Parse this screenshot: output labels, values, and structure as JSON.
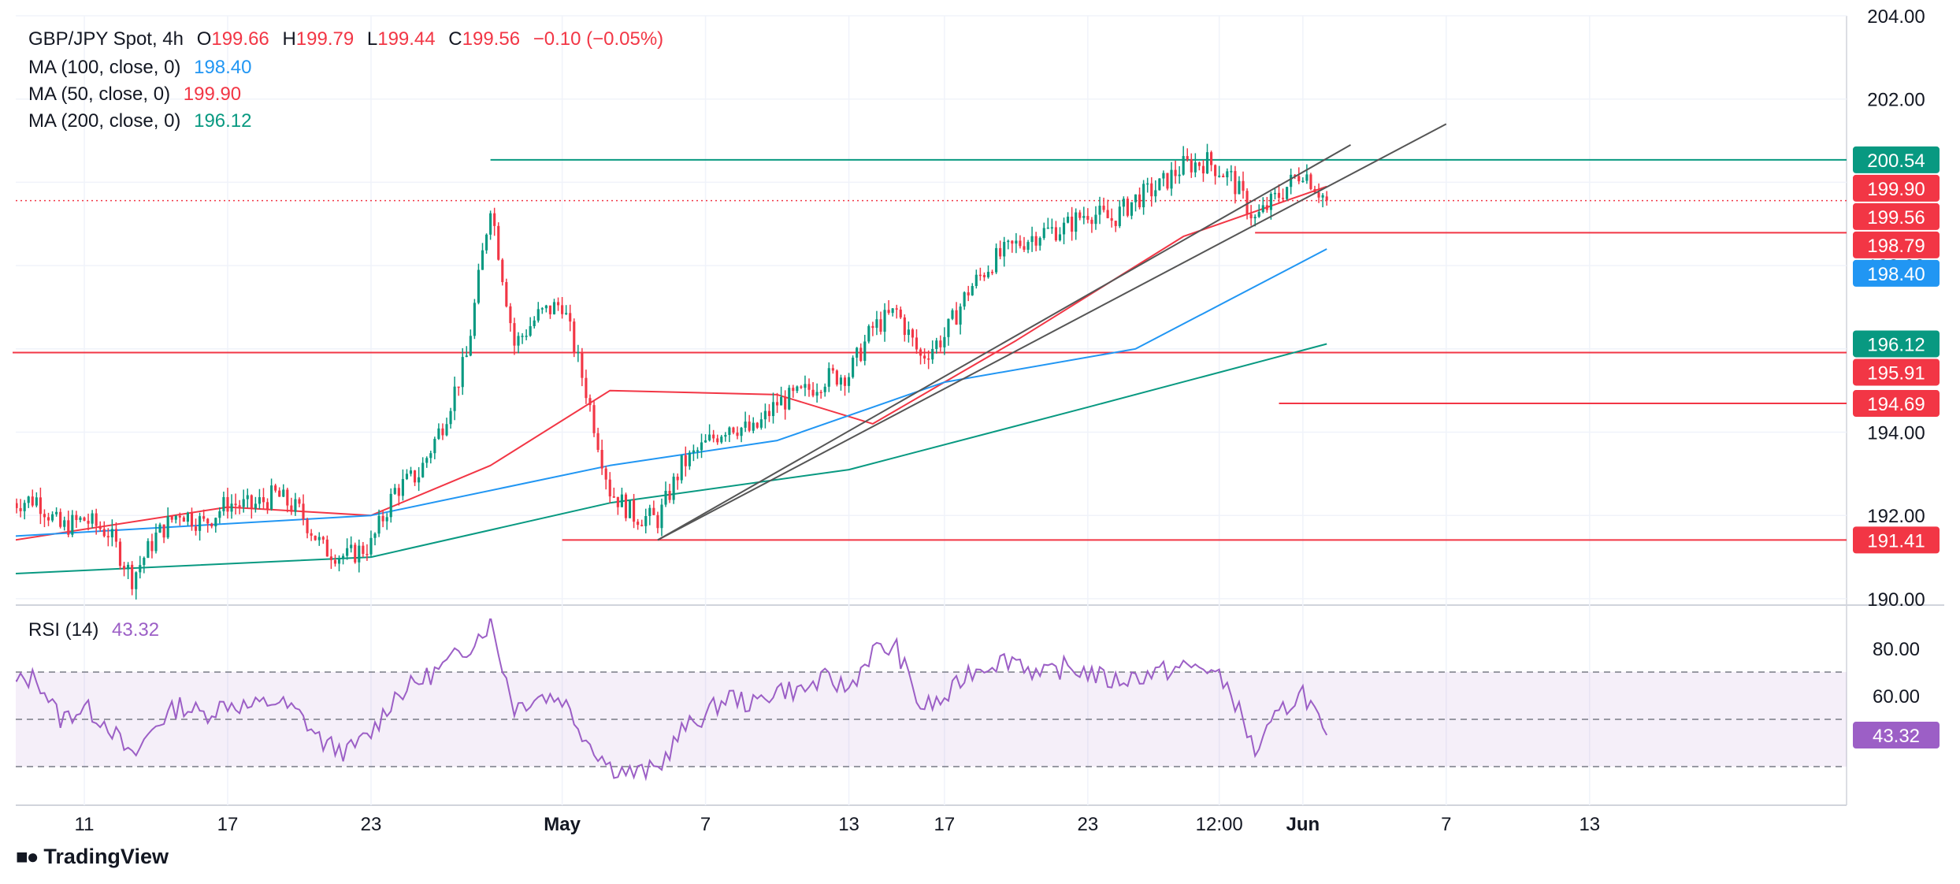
{
  "header": {
    "symbol": "GBP/JPY Spot, 4h",
    "open_label": "O",
    "open": "199.66",
    "high_label": "H",
    "high": "199.79",
    "low_label": "L",
    "low": "199.44",
    "close_label": "C",
    "close": "199.56",
    "change": "−0.10 (−0.05%)"
  },
  "indicators": {
    "ma100": {
      "label": "MA (100, close, 0)",
      "value": "198.40",
      "color": "#2196f3"
    },
    "ma50": {
      "label": "MA (50, close, 0)",
      "value": "199.90",
      "color": "#f23645"
    },
    "ma200": {
      "label": "MA (200, close, 0)",
      "value": "196.12",
      "color": "#089981"
    },
    "rsi": {
      "label": "RSI (14)",
      "value": "43.32",
      "color": "#9c5fc6"
    }
  },
  "branding": {
    "logo_text": "TradingView"
  },
  "chart_data": {
    "type": "candlestick",
    "title": "GBP/JPY Spot, 4h",
    "price_axis": {
      "ticks": [
        "204.00",
        "202.00",
        "200.00",
        "198.00",
        "196.00",
        "194.00",
        "192.00",
        "190.00"
      ],
      "ylim": [
        190.0,
        204.0
      ]
    },
    "time_axis": {
      "labels": [
        "11",
        "17",
        "23",
        "May",
        "7",
        "13",
        "17",
        "23",
        "12:00",
        "Jun",
        "7",
        "13"
      ],
      "label_dates": [
        "Apr 11",
        "Apr 17",
        "Apr 23",
        "May 1",
        "May 7",
        "May 13",
        "May 17",
        "May 23",
        "May 28 12:00",
        "Jun 1",
        "Jun 7",
        "Jun 13"
      ]
    },
    "price_series": {
      "name": "GBP/JPY",
      "date_range": [
        "Apr 8",
        "Jun 2"
      ],
      "bars_per_day": 6,
      "anchors": [
        {
          "date": "Apr 8",
          "price": 192.3
        },
        {
          "date": "Apr 9",
          "price": 192.4
        },
        {
          "date": "Apr 10",
          "price": 191.7
        },
        {
          "date": "Apr 11",
          "price": 191.9
        },
        {
          "date": "Apr 12",
          "price": 191.6
        },
        {
          "date": "Apr 13",
          "price": 190.5
        },
        {
          "date": "Apr 14",
          "price": 191.5
        },
        {
          "date": "Apr 15",
          "price": 192.1
        },
        {
          "date": "Apr 16",
          "price": 191.8
        },
        {
          "date": "Apr 17",
          "price": 192.3
        },
        {
          "date": "Apr 18",
          "price": 192.2
        },
        {
          "date": "Apr 19",
          "price": 192.5
        },
        {
          "date": "Apr 20",
          "price": 192.1
        },
        {
          "date": "Apr 21",
          "price": 191.2
        },
        {
          "date": "Apr 22",
          "price": 191.0
        },
        {
          "date": "Apr 23",
          "price": 191.3
        },
        {
          "date": "Apr 24",
          "price": 192.6
        },
        {
          "date": "Apr 25",
          "price": 193.0
        },
        {
          "date": "Apr 26",
          "price": 194.2
        },
        {
          "date": "Apr 27",
          "price": 195.8
        },
        {
          "date": "Apr 28",
          "price": 199.5
        },
        {
          "date": "Apr 29",
          "price": 196.1
        },
        {
          "date": "Apr 30",
          "price": 196.8
        },
        {
          "date": "May 1",
          "price": 197.1
        },
        {
          "date": "May 2",
          "price": 195.0
        },
        {
          "date": "May 3",
          "price": 192.6
        },
        {
          "date": "May 4",
          "price": 192.0
        },
        {
          "date": "May 5",
          "price": 191.9
        },
        {
          "date": "May 6",
          "price": 193.2
        },
        {
          "date": "May 7",
          "price": 193.7
        },
        {
          "date": "May 8",
          "price": 194.2
        },
        {
          "date": "May 9",
          "price": 194.0
        },
        {
          "date": "May 10",
          "price": 194.7
        },
        {
          "date": "May 11",
          "price": 194.9
        },
        {
          "date": "May 12",
          "price": 195.3
        },
        {
          "date": "May 13",
          "price": 195.4
        },
        {
          "date": "May 14",
          "price": 196.5
        },
        {
          "date": "May 15",
          "price": 196.9
        },
        {
          "date": "May 16",
          "price": 195.8
        },
        {
          "date": "May 17",
          "price": 196.3
        },
        {
          "date": "May 18",
          "price": 197.4
        },
        {
          "date": "May 19",
          "price": 198.1
        },
        {
          "date": "May 20",
          "price": 198.5
        },
        {
          "date": "May 21",
          "price": 198.8
        },
        {
          "date": "May 22",
          "price": 198.9
        },
        {
          "date": "May 23",
          "price": 199.3
        },
        {
          "date": "May 24",
          "price": 199.1
        },
        {
          "date": "May 25",
          "price": 199.6
        },
        {
          "date": "May 26",
          "price": 199.9
        },
        {
          "date": "May 27",
          "price": 200.4
        },
        {
          "date": "May 28",
          "price": 200.5
        },
        {
          "date": "May 29",
          "price": 200.1
        },
        {
          "date": "May 30",
          "price": 199.1
        },
        {
          "date": "May 31",
          "price": 199.7
        },
        {
          "date": "Jun 1",
          "price": 200.3
        },
        {
          "date": "Jun 2",
          "price": 199.56
        }
      ]
    },
    "moving_averages": [
      {
        "name": "MA (50, close, 0)",
        "color": "#f23645",
        "points": [
          {
            "date": "Apr 8",
            "v": 191.4
          },
          {
            "date": "Apr 17",
            "v": 192.2
          },
          {
            "date": "Apr 23",
            "v": 192.0
          },
          {
            "date": "Apr 28",
            "v": 193.2
          },
          {
            "date": "May 3",
            "v": 195.0
          },
          {
            "date": "May 10",
            "v": 194.9
          },
          {
            "date": "May 14",
            "v": 194.2
          },
          {
            "date": "May 20",
            "v": 196.2
          },
          {
            "date": "May 27",
            "v": 198.7
          },
          {
            "date": "Jun 2",
            "v": 199.9
          }
        ]
      },
      {
        "name": "MA (100, close, 0)",
        "color": "#2196f3",
        "points": [
          {
            "date": "Apr 8",
            "v": 191.5
          },
          {
            "date": "Apr 23",
            "v": 192.0
          },
          {
            "date": "May 3",
            "v": 193.2
          },
          {
            "date": "May 10",
            "v": 193.8
          },
          {
            "date": "May 17",
            "v": 195.2
          },
          {
            "date": "May 25",
            "v": 196.0
          },
          {
            "date": "Jun 2",
            "v": 198.4
          }
        ]
      },
      {
        "name": "MA (200, close, 0)",
        "color": "#089981",
        "points": [
          {
            "date": "Apr 8",
            "v": 190.6
          },
          {
            "date": "Apr 23",
            "v": 191.0
          },
          {
            "date": "May 3",
            "v": 192.3
          },
          {
            "date": "May 13",
            "v": 193.1
          },
          {
            "date": "May 23",
            "v": 194.6
          },
          {
            "date": "Jun 2",
            "v": 196.12
          }
        ]
      }
    ],
    "horizontal_levels": [
      {
        "value": 200.54,
        "color": "#089981",
        "label": "200.54",
        "start_date": "Apr 28"
      },
      {
        "value": 198.79,
        "color": "#f23645",
        "label": "198.79",
        "start_date": "May 30"
      },
      {
        "value": 195.91,
        "color": "#f23645",
        "label": "195.91",
        "start_date": "Apr 8"
      },
      {
        "value": 194.69,
        "color": "#f23645",
        "label": "194.69",
        "start_date": "May 31"
      },
      {
        "value": 191.41,
        "color": "#f23645",
        "label": "191.41",
        "start_date": "May 1"
      }
    ],
    "price_labels": [
      {
        "value": 200.54,
        "label": "200.54",
        "color": "#089981"
      },
      {
        "value": 199.9,
        "label": "199.90",
        "color": "#f23645"
      },
      {
        "value": 199.56,
        "label": "199.56",
        "color": "#f23645"
      },
      {
        "value": 198.79,
        "label": "198.79",
        "color": "#f23645"
      },
      {
        "value": 198.4,
        "label": "198.40",
        "color": "#2196f3"
      },
      {
        "value": 196.12,
        "label": "196.12",
        "color": "#089981"
      },
      {
        "value": 195.91,
        "label": "195.91",
        "color": "#f23645"
      },
      {
        "value": 194.69,
        "label": "194.69",
        "color": "#f23645"
      },
      {
        "value": 191.41,
        "label": "191.41",
        "color": "#f23645"
      }
    ],
    "last_price": 199.56,
    "trendlines": [
      {
        "from": {
          "date": "May 5",
          "price": 191.41
        },
        "to": {
          "date": "Jun 3",
          "price": 200.9
        },
        "color": "#555555"
      },
      {
        "from": {
          "date": "May 5",
          "price": 191.41
        },
        "to": {
          "date": "Jun 7",
          "price": 201.4
        },
        "color": "#555555"
      }
    ],
    "rsi": {
      "name": "RSI (14)",
      "ticks": [
        "80.00",
        "60.00"
      ],
      "ylim": [
        24,
        100
      ],
      "bands": [
        70,
        50,
        30
      ],
      "last": 43.32,
      "points": [
        {
          "date": "Apr 8",
          "v": 65
        },
        {
          "date": "Apr 9",
          "v": 68
        },
        {
          "date": "Apr 10",
          "v": 50
        },
        {
          "date": "Apr 11",
          "v": 55
        },
        {
          "date": "Apr 12",
          "v": 48
        },
        {
          "date": "Apr 13",
          "v": 33
        },
        {
          "date": "Apr 14",
          "v": 48
        },
        {
          "date": "Apr 15",
          "v": 56
        },
        {
          "date": "Apr 16",
          "v": 52
        },
        {
          "date": "Apr 17",
          "v": 57
        },
        {
          "date": "Apr 18",
          "v": 55
        },
        {
          "date": "Apr 19",
          "v": 58
        },
        {
          "date": "Apr 20",
          "v": 52
        },
        {
          "date": "Apr 21",
          "v": 40
        },
        {
          "date": "Apr 22",
          "v": 36
        },
        {
          "date": "Apr 23",
          "v": 44
        },
        {
          "date": "Apr 24",
          "v": 60
        },
        {
          "date": "Apr 25",
          "v": 66
        },
        {
          "date": "Apr 26",
          "v": 72
        },
        {
          "date": "Apr 27",
          "v": 80
        },
        {
          "date": "Apr 28",
          "v": 91
        },
        {
          "date": "Apr 29",
          "v": 55
        },
        {
          "date": "Apr 30",
          "v": 60
        },
        {
          "date": "May 1",
          "v": 59
        },
        {
          "date": "May 2",
          "v": 42
        },
        {
          "date": "May 3",
          "v": 30
        },
        {
          "date": "May 4",
          "v": 27
        },
        {
          "date": "May 5",
          "v": 29
        },
        {
          "date": "May 6",
          "v": 45
        },
        {
          "date": "May 7",
          "v": 52
        },
        {
          "date": "May 8",
          "v": 60
        },
        {
          "date": "May 9",
          "v": 56
        },
        {
          "date": "May 10",
          "v": 63
        },
        {
          "date": "May 11",
          "v": 62
        },
        {
          "date": "May 12",
          "v": 67
        },
        {
          "date": "May 13",
          "v": 63
        },
        {
          "date": "May 14",
          "v": 79
        },
        {
          "date": "May 15",
          "v": 80
        },
        {
          "date": "May 16",
          "v": 55
        },
        {
          "date": "May 17",
          "v": 58
        },
        {
          "date": "May 18",
          "v": 70
        },
        {
          "date": "May 19",
          "v": 74
        },
        {
          "date": "May 20",
          "v": 76
        },
        {
          "date": "May 21",
          "v": 68
        },
        {
          "date": "May 22",
          "v": 72
        },
        {
          "date": "May 23",
          "v": 70
        },
        {
          "date": "May 24",
          "v": 66
        },
        {
          "date": "May 25",
          "v": 68
        },
        {
          "date": "May 26",
          "v": 70
        },
        {
          "date": "May 27",
          "v": 72
        },
        {
          "date": "May 28",
          "v": 72
        },
        {
          "date": "May 29",
          "v": 62
        },
        {
          "date": "May 30",
          "v": 36
        },
        {
          "date": "May 31",
          "v": 52
        },
        {
          "date": "Jun 1",
          "v": 62
        },
        {
          "date": "Jun 2",
          "v": 43.32
        }
      ]
    },
    "grid": true
  }
}
